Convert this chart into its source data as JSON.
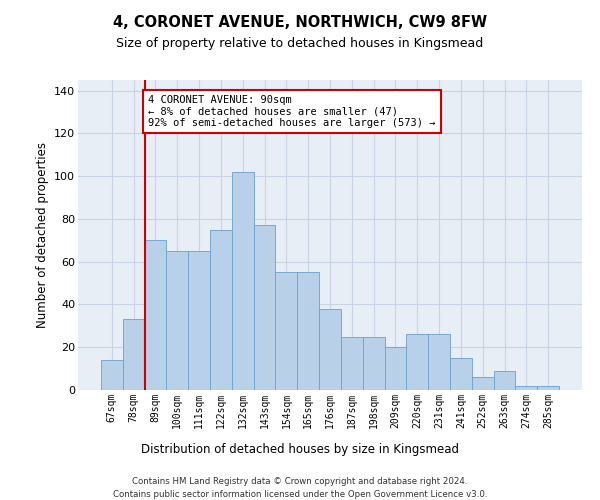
{
  "title": "4, CORONET AVENUE, NORTHWICH, CW9 8FW",
  "subtitle": "Size of property relative to detached houses in Kingsmead",
  "xlabel": "Distribution of detached houses by size in Kingsmead",
  "ylabel": "Number of detached properties",
  "bar_labels": [
    "67sqm",
    "78sqm",
    "89sqm",
    "100sqm",
    "111sqm",
    "122sqm",
    "132sqm",
    "143sqm",
    "154sqm",
    "165sqm",
    "176sqm",
    "187sqm",
    "198sqm",
    "209sqm",
    "220sqm",
    "231sqm",
    "241sqm",
    "252sqm",
    "263sqm",
    "274sqm",
    "285sqm"
  ],
  "bar_values": [
    14,
    33,
    70,
    65,
    65,
    75,
    102,
    77,
    55,
    55,
    38,
    25,
    25,
    20,
    26,
    26,
    15,
    6,
    9,
    2,
    2
  ],
  "bar_color": "#b8d0e8",
  "bar_edge_color": "#6aa0cc",
  "grid_color": "#c8d4e4",
  "background_color": "#e8eef6",
  "annotation_line1": "4 CORONET AVENUE: 90sqm",
  "annotation_line2": "← 8% of detached houses are smaller (47)",
  "annotation_line3": "92% of semi-detached houses are larger (573) →",
  "annotation_box_color": "#cc0000",
  "ylim": [
    0,
    145
  ],
  "yticks": [
    0,
    20,
    40,
    60,
    80,
    100,
    120,
    140
  ],
  "footnote_line1": "Contains HM Land Registry data © Crown copyright and database right 2024.",
  "footnote_line2": "Contains public sector information licensed under the Open Government Licence v3.0."
}
